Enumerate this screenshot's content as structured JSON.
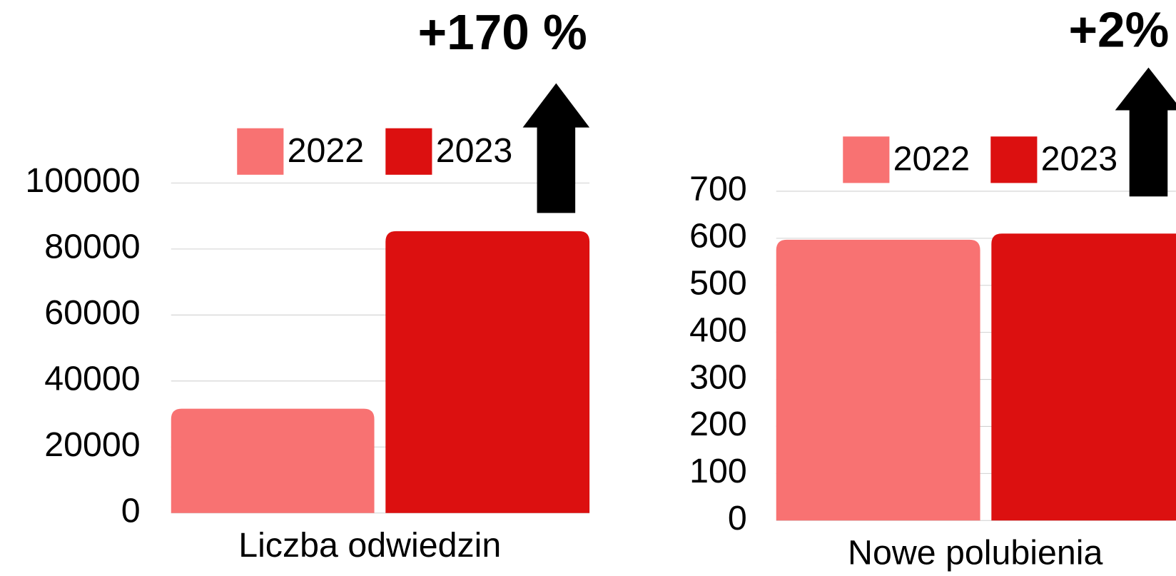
{
  "chart_data": [
    {
      "type": "bar",
      "categories": [
        "Liczba odwiedzin"
      ],
      "annotation": "+170 %",
      "series": [
        {
          "name": "2022",
          "color": "#f87272",
          "values": [
            31600
          ]
        },
        {
          "name": "2023",
          "color": "#dc1010",
          "values": [
            85400
          ]
        }
      ],
      "ylim": [
        0,
        100000
      ],
      "yticks": [
        0,
        20000,
        40000,
        60000,
        80000,
        100000
      ],
      "grid": true
    },
    {
      "type": "bar",
      "categories": [
        "Nowe polubienia"
      ],
      "annotation": "+2%",
      "series": [
        {
          "name": "2022",
          "color": "#f87272",
          "values": [
            597
          ]
        },
        {
          "name": "2023",
          "color": "#dc1010",
          "values": [
            610
          ]
        }
      ],
      "ylim": [
        0,
        700
      ],
      "yticks": [
        0,
        100,
        200,
        300,
        400,
        500,
        600,
        700
      ],
      "grid": true
    }
  ]
}
